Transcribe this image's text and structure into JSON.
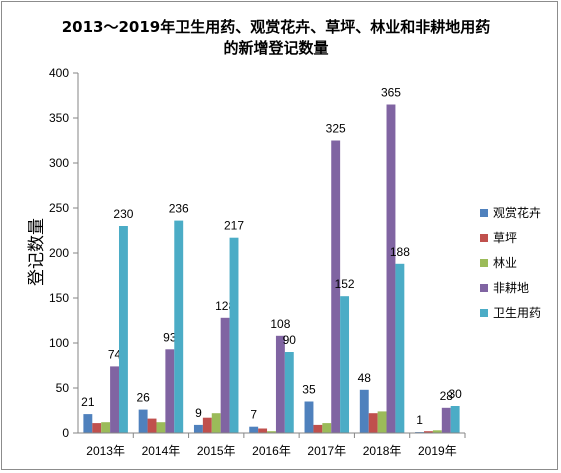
{
  "chart_data": {
    "type": "bar",
    "title_lines": [
      "2013～2019年卫生用药、观赏花卉、草坪、林业和非耕地用药",
      "的新增登记数量"
    ],
    "ylabel": "登记数量",
    "xlabel": "",
    "ylim": [
      0,
      400
    ],
    "yticks": [
      0,
      50,
      100,
      150,
      200,
      250,
      300,
      350,
      400
    ],
    "grid": "none",
    "legend_position": "right",
    "categories": [
      "2013年",
      "2014年",
      "2015年",
      "2016年",
      "2017年",
      "2018年",
      "2019年"
    ],
    "series": [
      {
        "name": "观赏花卉",
        "color": "#4F81BD",
        "values": [
          21,
          26,
          9,
          7,
          35,
          48,
          1
        ],
        "labels": [
          "21",
          "26",
          "9",
          "7",
          "35",
          "48",
          "1"
        ]
      },
      {
        "name": "草坪",
        "color": "#C0504D",
        "values": [
          11,
          16,
          17,
          5,
          9,
          22,
          2
        ],
        "labels": []
      },
      {
        "name": "林业",
        "color": "#9BBB59",
        "values": [
          12,
          12,
          22,
          2,
          11,
          24,
          3
        ],
        "labels": []
      },
      {
        "name": "非耕地",
        "color": "#8064A2",
        "values": [
          74,
          93,
          128,
          108,
          325,
          365,
          28
        ],
        "labels": [
          "74",
          "93",
          "128",
          "108",
          "325",
          "365",
          "28"
        ]
      },
      {
        "name": "卫生用药",
        "color": "#4BACC6",
        "values": [
          230,
          236,
          217,
          90,
          152,
          188,
          30
        ],
        "labels": [
          "230",
          "236",
          "217",
          "90",
          "152",
          "188",
          "30"
        ]
      }
    ]
  }
}
